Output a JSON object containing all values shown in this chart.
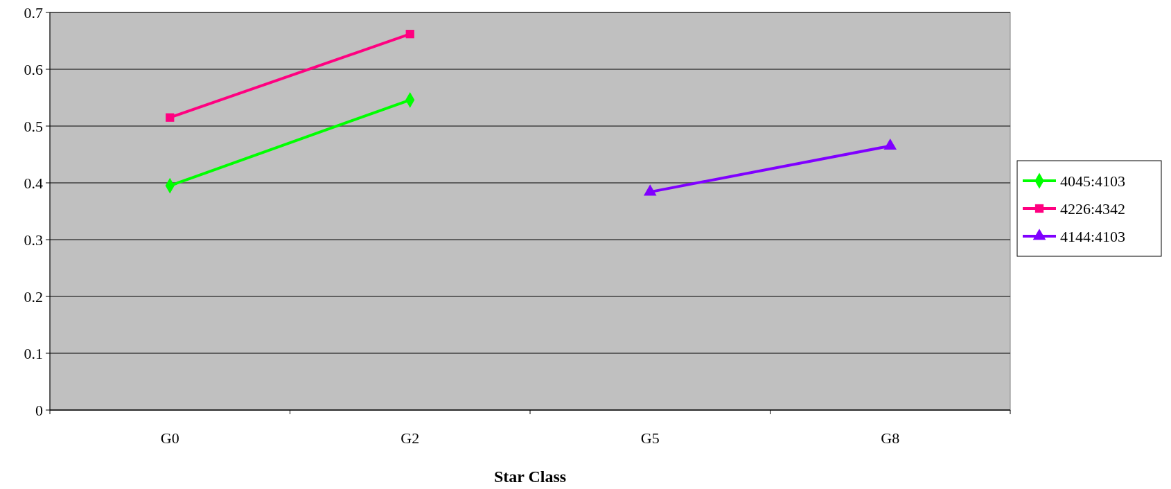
{
  "chart_data": {
    "type": "line",
    "xlabel": "Star Class",
    "categories": [
      "G0",
      "G2",
      "G5",
      "G8"
    ],
    "series": [
      {
        "name": "4045:4103",
        "color": "#00ff00",
        "marker": "diamond",
        "values": [
          0.395,
          0.546,
          null,
          null
        ]
      },
      {
        "name": "4226:4342",
        "color": "#ff0080",
        "marker": "square",
        "values": [
          0.515,
          0.662,
          null,
          null
        ]
      },
      {
        "name": "4144:4103",
        "color": "#8000ff",
        "marker": "triangle",
        "values": [
          null,
          null,
          0.384,
          0.465
        ]
      }
    ],
    "ylim": [
      0,
      0.7
    ],
    "yticks": [
      0,
      0.1,
      0.2,
      0.3,
      0.4,
      0.5,
      0.6,
      0.7
    ],
    "grid": "y",
    "legend": "right"
  }
}
